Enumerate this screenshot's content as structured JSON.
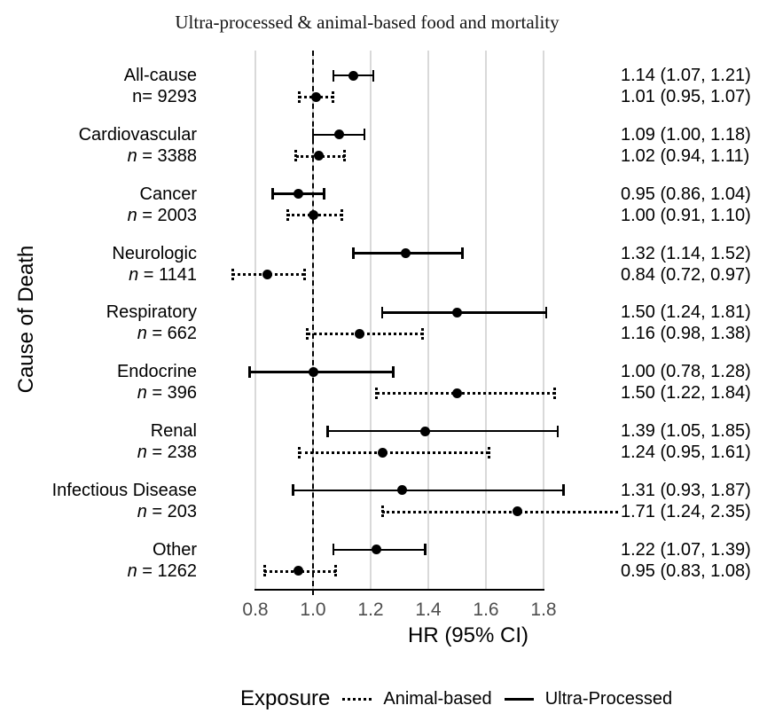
{
  "chart_data": {
    "type": "forest",
    "title": "Ultra-processed & animal-based food and mortality",
    "xlabel": "HR (95% CI)",
    "ylabel": "Cause of Death",
    "xlim": [
      0.8,
      1.8
    ],
    "reference_line": 1.0,
    "grid": "vertical-major",
    "x_ticks": [
      {
        "label": "0.8",
        "value": 0.8
      },
      {
        "label": "1.0",
        "value": 1.0
      },
      {
        "label": "1.2",
        "value": 1.2
      },
      {
        "label": "1.4",
        "value": 1.4
      },
      {
        "label": "1.6",
        "value": 1.6
      },
      {
        "label": "1.8",
        "value": 1.8
      }
    ],
    "legend": {
      "title": "Exposure",
      "position": "bottom",
      "items": [
        {
          "label": "Animal-based",
          "style": "dotted"
        },
        {
          "label": "Ultra-Processed",
          "style": "solid"
        }
      ]
    },
    "rows": [
      {
        "cause": "All-cause",
        "n_label": "n= 9293",
        "n_italic": false,
        "ultra_processed": {
          "hr": 1.14,
          "lo": 1.07,
          "hi": 1.21,
          "label": "1.14 (1.07, 1.21)"
        },
        "animal_based": {
          "hr": 1.01,
          "lo": 0.95,
          "hi": 1.07,
          "label": "1.01 (0.95, 1.07)"
        }
      },
      {
        "cause": "Cardiovascular",
        "n_label": "n = 3388",
        "n_italic": true,
        "ultra_processed": {
          "hr": 1.09,
          "lo": 1.0,
          "hi": 1.18,
          "label": "1.09 (1.00, 1.18)"
        },
        "animal_based": {
          "hr": 1.02,
          "lo": 0.94,
          "hi": 1.11,
          "label": "1.02 (0.94, 1.11)"
        }
      },
      {
        "cause": "Cancer",
        "n_label": "n = 2003",
        "n_italic": true,
        "ultra_processed": {
          "hr": 0.95,
          "lo": 0.86,
          "hi": 1.04,
          "label": "0.95 (0.86, 1.04)"
        },
        "animal_based": {
          "hr": 1.0,
          "lo": 0.91,
          "hi": 1.1,
          "label": "1.00 (0.91, 1.10)"
        }
      },
      {
        "cause": "Neurologic",
        "n_label": "n = 1141",
        "n_italic": true,
        "ultra_processed": {
          "hr": 1.32,
          "lo": 1.14,
          "hi": 1.52,
          "label": "1.32 (1.14, 1.52)"
        },
        "animal_based": {
          "hr": 0.84,
          "lo": 0.72,
          "hi": 0.97,
          "label": "0.84 (0.72, 0.97)"
        }
      },
      {
        "cause": "Respiratory",
        "n_label": "n = 662",
        "n_italic": true,
        "ultra_processed": {
          "hr": 1.5,
          "lo": 1.24,
          "hi": 1.81,
          "label": "1.50 (1.24, 1.81)"
        },
        "animal_based": {
          "hr": 1.16,
          "lo": 0.98,
          "hi": 1.38,
          "label": "1.16 (0.98, 1.38)"
        }
      },
      {
        "cause": "Endocrine",
        "n_label": "n = 396",
        "n_italic": true,
        "ultra_processed": {
          "hr": 1.0,
          "lo": 0.78,
          "hi": 1.28,
          "label": "1.00 (0.78, 1.28)"
        },
        "animal_based": {
          "hr": 1.5,
          "lo": 1.22,
          "hi": 1.84,
          "label": "1.50 (1.22, 1.84)"
        }
      },
      {
        "cause": "Renal",
        "n_label": "n = 238",
        "n_italic": true,
        "ultra_processed": {
          "hr": 1.39,
          "lo": 1.05,
          "hi": 1.85,
          "label": "1.39 (1.05, 1.85)"
        },
        "animal_based": {
          "hr": 1.24,
          "lo": 0.95,
          "hi": 1.61,
          "label": "1.24 (0.95, 1.61)"
        }
      },
      {
        "cause": "Infectious Disease",
        "n_label": "n = 203",
        "n_italic": true,
        "ultra_processed": {
          "hr": 1.31,
          "lo": 0.93,
          "hi": 1.87,
          "label": "1.31 (0.93, 1.87)"
        },
        "animal_based": {
          "hr": 1.71,
          "lo": 1.24,
          "hi": 2.35,
          "label": "1.71 (1.24, 2.35)"
        }
      },
      {
        "cause": "Other",
        "n_label": "n = 1262",
        "n_italic": true,
        "ultra_processed": {
          "hr": 1.22,
          "lo": 1.07,
          "hi": 1.39,
          "label": "1.22 (1.07, 1.39)"
        },
        "animal_based": {
          "hr": 0.95,
          "lo": 0.83,
          "hi": 1.08,
          "label": "0.95 (0.83, 1.08)"
        }
      }
    ],
    "colors": {
      "data": "#000000",
      "grid": "#d9d9d9",
      "tick_label": "#4d4d4d",
      "background": "#ffffff"
    }
  }
}
